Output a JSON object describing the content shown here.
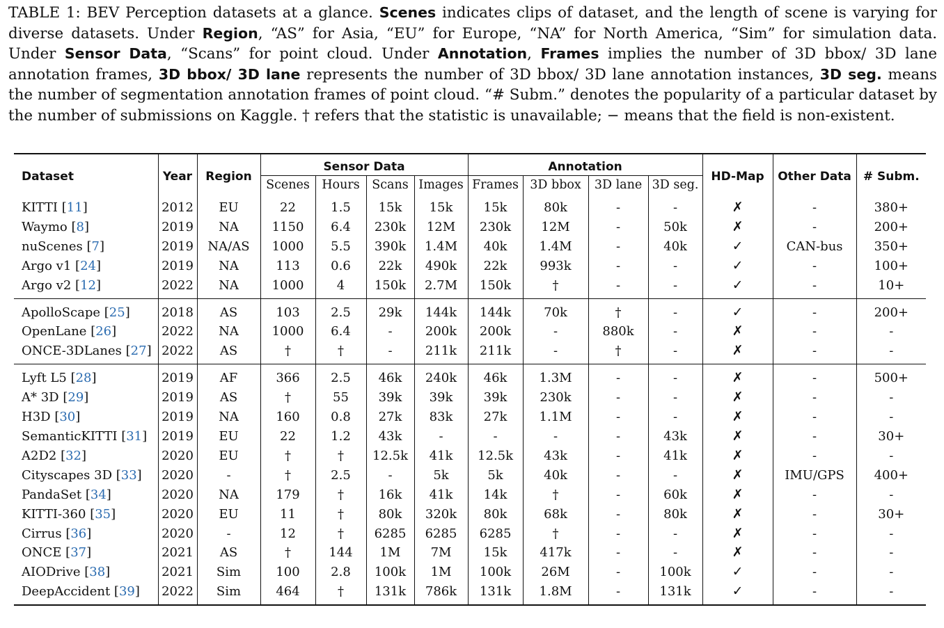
{
  "caption": {
    "lead": "TABLE 1: BEV Perception datasets at a glance. ",
    "b1": "Scenes",
    "t1": " indicates clips of dataset, and the length of scene is varying for diverse datasets. Under ",
    "b2": "Region",
    "t2": ", “AS” for Asia, “EU” for Europe, “NA” for North America, “Sim” for simulation data. Under ",
    "b3": "Sensor Data",
    "t3": ", “Scans” for point cloud. Under ",
    "b4": "Annotation",
    "t4": ", ",
    "b5": "Frames",
    "t5": " implies the number of 3D bbox/ 3D lane annotation frames, ",
    "b6": "3D bbox/ 3D lane",
    "t6": " represents the number of 3D bbox/ 3D lane annotation instances, ",
    "b7": "3D seg.",
    "t7": " means the number of segmentation annotation frames of point cloud. “# Subm.” denotes the popularity of a particular dataset by the number of submissions on Kaggle. † refers that the statistic is unavailable; − means that the field is non-existent."
  },
  "headers": {
    "dataset": "Dataset",
    "year": "Year",
    "region": "Region",
    "sensor_data": "Sensor Data",
    "annotation": "Annotation",
    "hdmap": "HD-Map",
    "other": "Other Data",
    "subm": "# Subm.",
    "sub": [
      "Scenes",
      "Hours",
      "Scans",
      "Images",
      "Frames",
      "3D bbox",
      "3D lane",
      "3D seg."
    ]
  },
  "groups": [
    [
      {
        "name": "KITTI",
        "ref": "11",
        "year": "2012",
        "region": "EU",
        "scenes": "22",
        "hours": "1.5",
        "scans": "15k",
        "images": "15k",
        "frames": "15k",
        "bbox": "80k",
        "lane": "-",
        "seg": "-",
        "hdmap": "✗",
        "other": "-",
        "subm": "380+"
      },
      {
        "name": "Waymo",
        "ref": "8",
        "year": "2019",
        "region": "NA",
        "scenes": "1150",
        "hours": "6.4",
        "scans": "230k",
        "images": "12M",
        "frames": "230k",
        "bbox": "12M",
        "lane": "-",
        "seg": "50k",
        "hdmap": "✗",
        "other": "-",
        "subm": "200+"
      },
      {
        "name": "nuScenes",
        "ref": "7",
        "year": "2019",
        "region": "NA/AS",
        "scenes": "1000",
        "hours": "5.5",
        "scans": "390k",
        "images": "1.4M",
        "frames": "40k",
        "bbox": "1.4M",
        "lane": "-",
        "seg": "40k",
        "hdmap": "✓",
        "other": "CAN-bus",
        "subm": "350+"
      },
      {
        "name": "Argo v1",
        "ref": "24",
        "year": "2019",
        "region": "NA",
        "scenes": "113",
        "hours": "0.6",
        "scans": "22k",
        "images": "490k",
        "frames": "22k",
        "bbox": "993k",
        "lane": "-",
        "seg": "-",
        "hdmap": "✓",
        "other": "-",
        "subm": "100+"
      },
      {
        "name": "Argo v2",
        "ref": "12",
        "year": "2022",
        "region": "NA",
        "scenes": "1000",
        "hours": "4",
        "scans": "150k",
        "images": "2.7M",
        "frames": "150k",
        "bbox": "†",
        "lane": "-",
        "seg": "-",
        "hdmap": "✓",
        "other": "-",
        "subm": "10+"
      }
    ],
    [
      {
        "name": "ApolloScape",
        "ref": "25",
        "year": "2018",
        "region": "AS",
        "scenes": "103",
        "hours": "2.5",
        "scans": "29k",
        "images": "144k",
        "frames": "144k",
        "bbox": "70k",
        "lane": "†",
        "seg": "-",
        "hdmap": "✓",
        "other": "-",
        "subm": "200+"
      },
      {
        "name": "OpenLane",
        "ref": "26",
        "year": "2022",
        "region": "NA",
        "scenes": "1000",
        "hours": "6.4",
        "scans": "-",
        "images": "200k",
        "frames": "200k",
        "bbox": "-",
        "lane": "880k",
        "seg": "-",
        "hdmap": "✗",
        "other": "-",
        "subm": "-"
      },
      {
        "name": "ONCE-3DLanes",
        "ref": "27",
        "year": "2022",
        "region": "AS",
        "scenes": "†",
        "hours": "†",
        "scans": "-",
        "images": "211k",
        "frames": "211k",
        "bbox": "-",
        "lane": "†",
        "seg": "-",
        "hdmap": "✗",
        "other": "-",
        "subm": "-"
      }
    ],
    [
      {
        "name": "Lyft L5",
        "ref": "28",
        "year": "2019",
        "region": "AF",
        "scenes": "366",
        "hours": "2.5",
        "scans": "46k",
        "images": "240k",
        "frames": "46k",
        "bbox": "1.3M",
        "lane": "-",
        "seg": "-",
        "hdmap": "✗",
        "other": "-",
        "subm": "500+"
      },
      {
        "name": "A* 3D",
        "ref": "29",
        "year": "2019",
        "region": "AS",
        "scenes": "†",
        "hours": "55",
        "scans": "39k",
        "images": "39k",
        "frames": "39k",
        "bbox": "230k",
        "lane": "-",
        "seg": "-",
        "hdmap": "✗",
        "other": "-",
        "subm": "-"
      },
      {
        "name": "H3D",
        "ref": "30",
        "year": "2019",
        "region": "NA",
        "scenes": "160",
        "hours": "0.8",
        "scans": "27k",
        "images": "83k",
        "frames": "27k",
        "bbox": "1.1M",
        "lane": "-",
        "seg": "-",
        "hdmap": "✗",
        "other": "-",
        "subm": "-"
      },
      {
        "name": "SemanticKITTI",
        "ref": "31",
        "year": "2019",
        "region": "EU",
        "scenes": "22",
        "hours": "1.2",
        "scans": "43k",
        "images": "-",
        "frames": "-",
        "bbox": "-",
        "lane": "-",
        "seg": "43k",
        "hdmap": "✗",
        "other": "-",
        "subm": "30+"
      },
      {
        "name": "A2D2",
        "ref": "32",
        "year": "2020",
        "region": "EU",
        "scenes": "†",
        "hours": "†",
        "scans": "12.5k",
        "images": "41k",
        "frames": "12.5k",
        "bbox": "43k",
        "lane": "-",
        "seg": "41k",
        "hdmap": "✗",
        "other": "-",
        "subm": "-"
      },
      {
        "name": "Cityscapes 3D",
        "ref": "33",
        "year": "2020",
        "region": "-",
        "scenes": "†",
        "hours": "2.5",
        "scans": "-",
        "images": "5k",
        "frames": "5k",
        "bbox": "40k",
        "lane": "-",
        "seg": "-",
        "hdmap": "✗",
        "other": "IMU/GPS",
        "subm": "400+"
      },
      {
        "name": "PandaSet",
        "ref": "34",
        "year": "2020",
        "region": "NA",
        "scenes": "179",
        "hours": "†",
        "scans": "16k",
        "images": "41k",
        "frames": "14k",
        "bbox": "†",
        "lane": "-",
        "seg": "60k",
        "hdmap": "✗",
        "other": "-",
        "subm": "-"
      },
      {
        "name": "KITTI-360",
        "ref": "35",
        "year": "2020",
        "region": "EU",
        "scenes": "11",
        "hours": "†",
        "scans": "80k",
        "images": "320k",
        "frames": "80k",
        "bbox": "68k",
        "lane": "-",
        "seg": "80k",
        "hdmap": "✗",
        "other": "-",
        "subm": "30+"
      },
      {
        "name": "Cirrus",
        "ref": "36",
        "year": "2020",
        "region": "-",
        "scenes": "12",
        "hours": "†",
        "scans": "6285",
        "images": "6285",
        "frames": "6285",
        "bbox": "†",
        "lane": "-",
        "seg": "-",
        "hdmap": "✗",
        "other": "-",
        "subm": "-"
      },
      {
        "name": "ONCE",
        "ref": "37",
        "year": "2021",
        "region": "AS",
        "scenes": "†",
        "hours": "144",
        "scans": "1M",
        "images": "7M",
        "frames": "15k",
        "bbox": "417k",
        "lane": "-",
        "seg": "-",
        "hdmap": "✗",
        "other": "-",
        "subm": "-"
      },
      {
        "name": "AIODrive",
        "ref": "38",
        "year": "2021",
        "region": "Sim",
        "scenes": "100",
        "hours": "2.8",
        "scans": "100k",
        "images": "1M",
        "frames": "100k",
        "bbox": "26M",
        "lane": "-",
        "seg": "100k",
        "hdmap": "✓",
        "other": "-",
        "subm": "-"
      },
      {
        "name": "DeepAccident",
        "ref": "39",
        "year": "2022",
        "region": "Sim",
        "scenes": "464",
        "hours": "†",
        "scans": "131k",
        "images": "786k",
        "frames": "131k",
        "bbox": "1.8M",
        "lane": "-",
        "seg": "131k",
        "hdmap": "✓",
        "other": "-",
        "subm": "-"
      }
    ]
  ]
}
